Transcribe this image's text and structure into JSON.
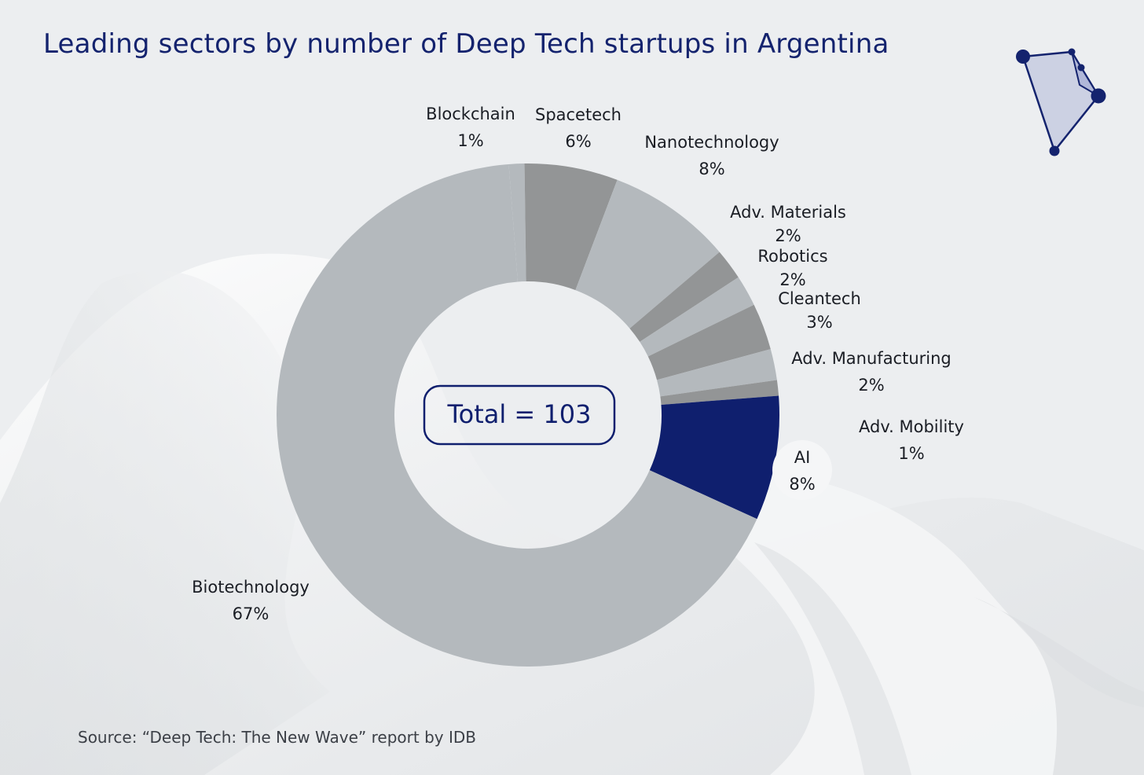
{
  "title": "Leading sectors by number of Deep Tech startups in Argentina",
  "source": "Source: “Deep Tech: The New Wave” report by IDB",
  "colors": {
    "accent": "#0f1f6e",
    "text_dark": "#1a1d24",
    "background": "#eceef0"
  },
  "center_label": "Total = 103",
  "chart_data": {
    "type": "pie",
    "variant": "donut",
    "total": 103,
    "slices": [
      {
        "label": "Blockchain",
        "value_pct": 1,
        "display": "1%",
        "color": "#b4b9bd"
      },
      {
        "label": "Spacetech",
        "value_pct": 6,
        "display": "6%",
        "color": "#939596"
      },
      {
        "label": "Nanotechnology",
        "value_pct": 8,
        "display": "8%",
        "color": "#b4b9bd"
      },
      {
        "label": "Adv. Materials",
        "value_pct": 2,
        "display": "2%",
        "color": "#939596"
      },
      {
        "label": "Robotics",
        "value_pct": 2,
        "display": "2%",
        "color": "#b4b9bd"
      },
      {
        "label": "Cleantech",
        "value_pct": 3,
        "display": "3%",
        "color": "#939596"
      },
      {
        "label": "Adv. Manufacturing",
        "value_pct": 2,
        "display": "2%",
        "color": "#b4b9bd"
      },
      {
        "label": "Adv. Mobility",
        "value_pct": 1,
        "display": "1%",
        "color": "#939596"
      },
      {
        "label": "AI",
        "value_pct": 8,
        "display": "8%",
        "color": "#0f1f6e"
      },
      {
        "label": "Biotechnology",
        "value_pct": 67,
        "display": "67%",
        "color": "#b4b9bd"
      }
    ]
  }
}
